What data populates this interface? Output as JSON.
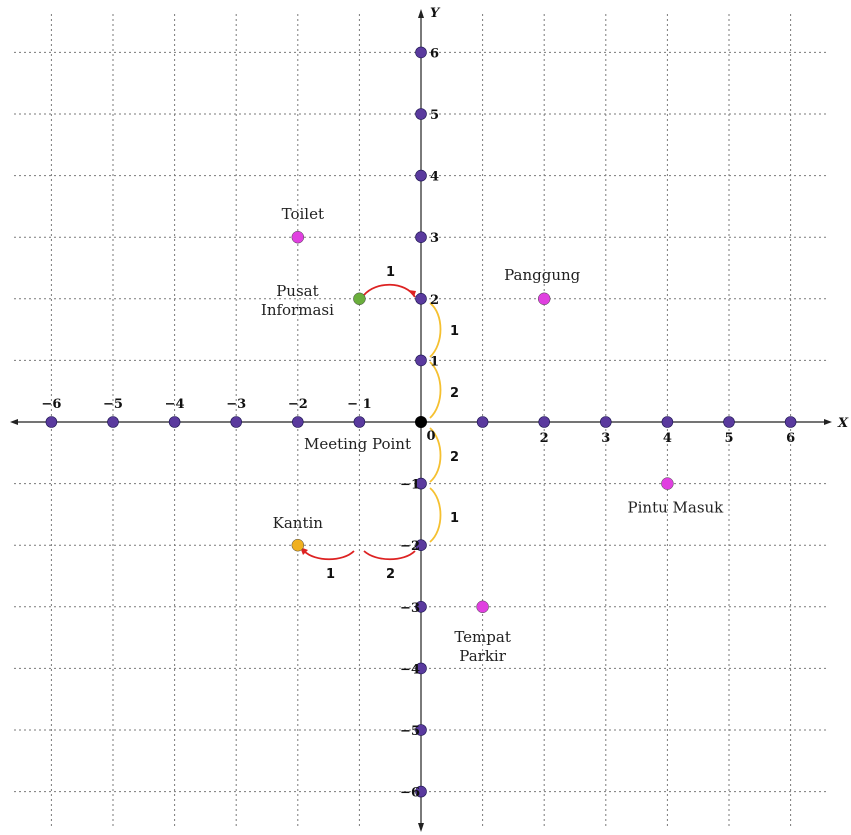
{
  "axes": {
    "x_label": "X",
    "y_label": "Y",
    "x_ticks": [
      "−6",
      "−5",
      "−4",
      "−3",
      "−2",
      "− 1",
      "0",
      "",
      "2",
      "3",
      "4",
      "5",
      "6"
    ],
    "y_ticks": [
      {
        "value": 6,
        "label": "6"
      },
      {
        "value": 5,
        "label": "5"
      },
      {
        "value": 4,
        "label": "4"
      },
      {
        "value": 3,
        "label": "3"
      },
      {
        "value": 2,
        "label": "2"
      },
      {
        "value": 1,
        "label": "1"
      },
      {
        "value": -1,
        "label": "−1"
      },
      {
        "value": -2,
        "label": "−2"
      },
      {
        "value": -3,
        "label": "−3"
      },
      {
        "value": -4,
        "label": "−4"
      },
      {
        "value": -5,
        "label": "−5"
      },
      {
        "value": -6,
        "label": "−6"
      }
    ],
    "range": [
      -6,
      6
    ],
    "grid": true,
    "point_color": "#5a3a9e"
  },
  "origin": {
    "label": "Meeting Point",
    "color": "#000000"
  },
  "places": [
    {
      "id": "toilet",
      "lines": [
        "Toilet"
      ],
      "x": -2,
      "y": 3,
      "color": "#e040e0"
    },
    {
      "id": "pusat-informasi",
      "lines": [
        "Pusat",
        "Informasi"
      ],
      "x": -1,
      "y": 2,
      "color": "#6aae3c"
    },
    {
      "id": "panggung",
      "lines": [
        "Panggung"
      ],
      "x": 2,
      "y": 2,
      "color": "#e040e0"
    },
    {
      "id": "pintu-masuk",
      "lines": [
        "Pintu Masuk"
      ],
      "x": 4,
      "y": -1,
      "color": "#e040e0"
    },
    {
      "id": "kantin",
      "lines": [
        "Kantin"
      ],
      "x": -2,
      "y": -2,
      "color": "#f0b020"
    },
    {
      "id": "tempat-parkir",
      "lines": [
        "Tempat",
        "Parkir"
      ],
      "x": 1,
      "y": -3,
      "color": "#e040e0"
    }
  ],
  "routes": {
    "info_path": {
      "color_horizontal": "#dd2222",
      "color_vertical": "#f5c030",
      "steps": [
        "2",
        "1",
        "1"
      ]
    },
    "kantin_path": {
      "color_horizontal": "#dd2222",
      "color_vertical": "#f5c030",
      "steps": [
        "2",
        "1",
        "2",
        "1"
      ]
    }
  }
}
